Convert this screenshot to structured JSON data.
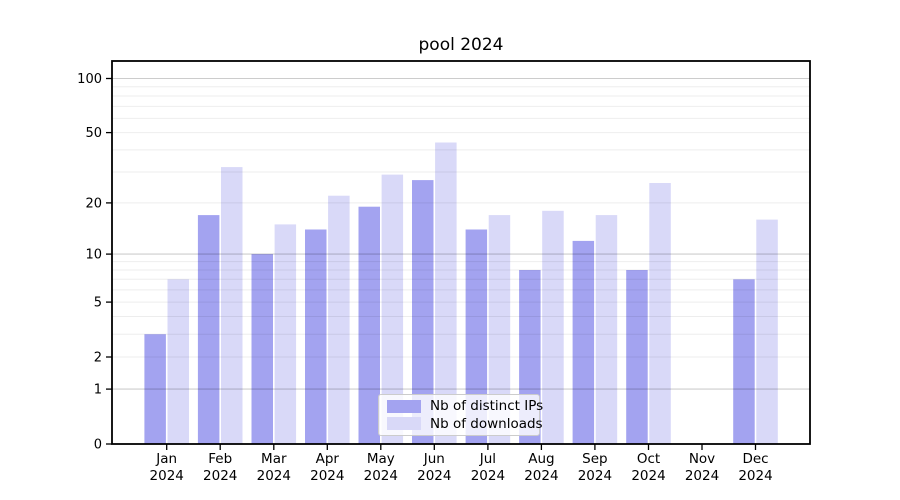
{
  "title": "pool 2024",
  "legend": {
    "items": [
      {
        "label": "Nb of distinct IPs",
        "color": "#a3a3f0"
      },
      {
        "label": "Nb of downloads",
        "color": "#d9d9f8"
      }
    ]
  },
  "chart_data": {
    "type": "bar",
    "title": "pool 2024",
    "categories": [
      "Jan 2024",
      "Feb 2024",
      "Mar 2024",
      "Apr 2024",
      "May 2024",
      "Jun 2024",
      "Jul 2024",
      "Aug 2024",
      "Sep 2024",
      "Oct 2024",
      "Nov 2024",
      "Dec 2024"
    ],
    "series": [
      {
        "name": "Nb of distinct IPs",
        "color": "#a3a3f0",
        "values": [
          3,
          17,
          10,
          14,
          19,
          27,
          14,
          8,
          12,
          8,
          0,
          7
        ]
      },
      {
        "name": "Nb of downloads",
        "color": "#d9d9f8",
        "values": [
          7,
          32,
          15,
          22,
          29,
          44,
          17,
          18,
          17,
          26,
          0,
          16
        ]
      }
    ],
    "yscale": "log1p",
    "ylim": [
      0,
      125
    ],
    "y_ticks": [
      0,
      1,
      2,
      5,
      10,
      20,
      50,
      100
    ],
    "major_gridlines": [
      1,
      10,
      100
    ],
    "minor_gridlines": [
      2,
      3,
      4,
      5,
      6,
      7,
      8,
      9,
      20,
      30,
      40,
      50,
      60,
      70,
      80,
      90
    ],
    "grid": "horizontal",
    "legend_position": "lower center inside"
  }
}
